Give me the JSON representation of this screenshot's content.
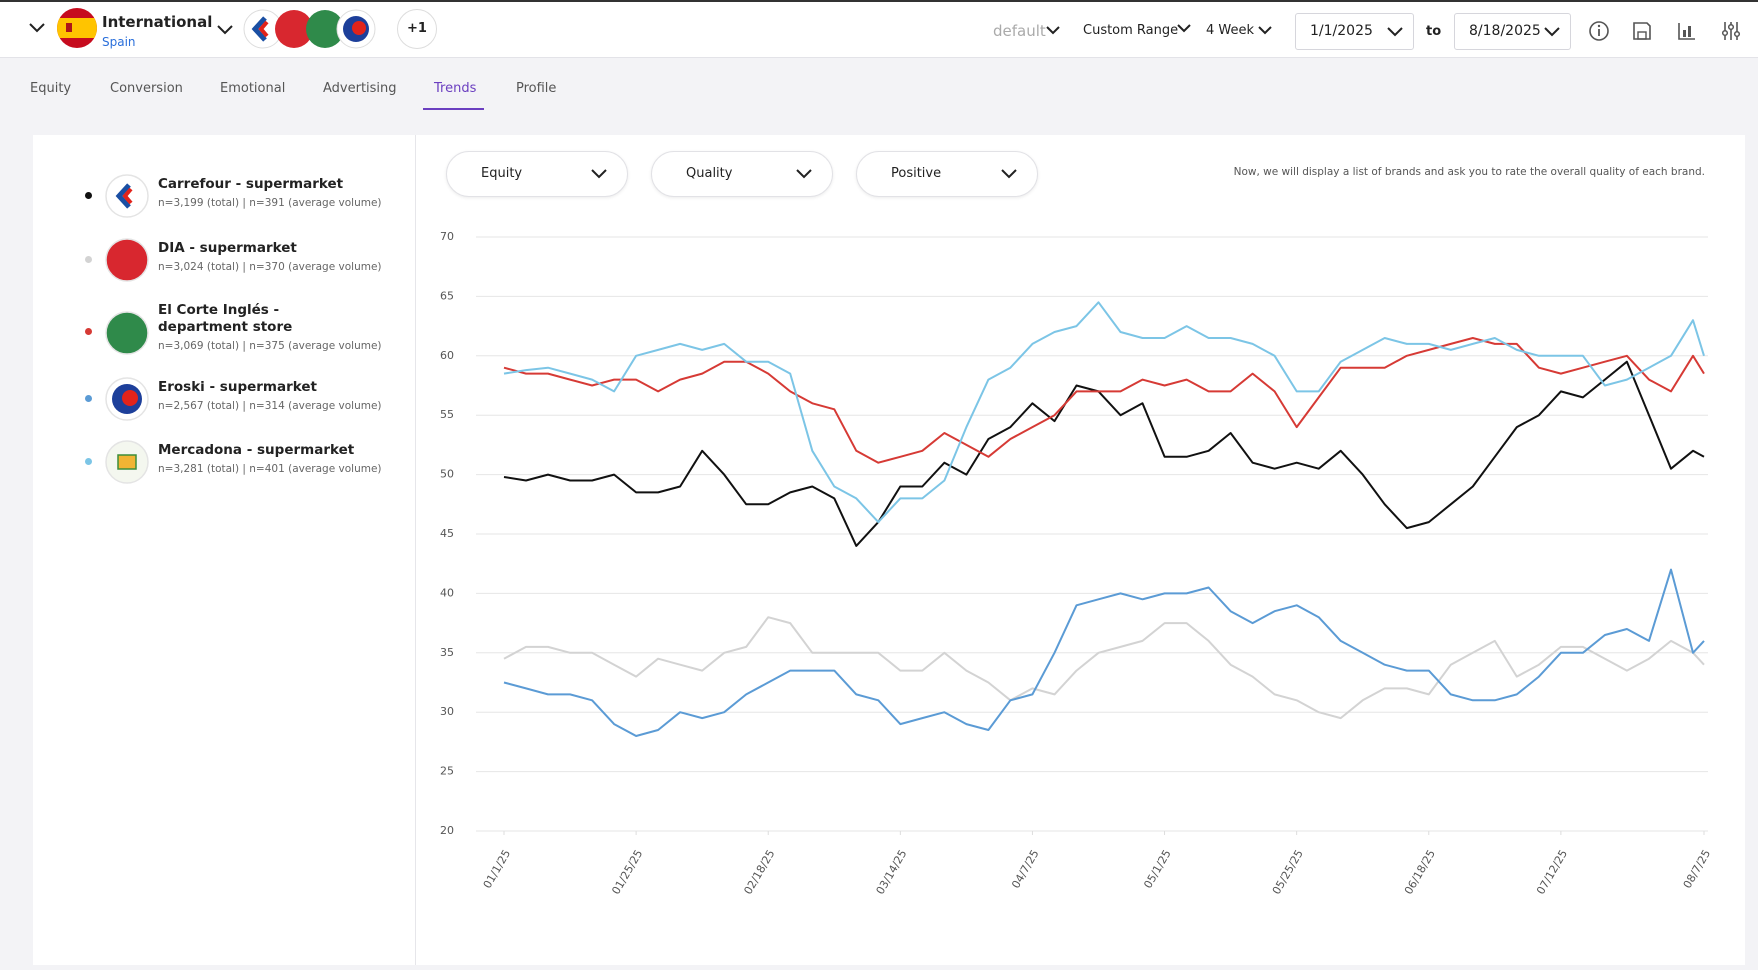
{
  "header": {
    "region": "International",
    "country": "Spain",
    "extra_count": "+1",
    "preset": "default",
    "range": "Custom Range",
    "period": "4 Week",
    "start": "1/1/2025",
    "to": "to",
    "end": "8/18/2025"
  },
  "tabs": [
    "Equity",
    "Conversion",
    "Emotional",
    "Advertising",
    "Trends",
    "Profile"
  ],
  "active_tab": 4,
  "filters": [
    "Equity",
    "Quality",
    "Positive"
  ],
  "description": "Now, we will display a list of brands and ask you to rate the overall quality of each brand.",
  "chart_data": {
    "type": "line",
    "x": [
      "01/1/25",
      "01/5/25",
      "01/9/25",
      "01/13/25",
      "01/17/25",
      "01/21/25",
      "01/25/25",
      "01/29/25",
      "02/2/25",
      "02/6/25",
      "02/10/25",
      "02/14/25",
      "02/18/25",
      "02/22/25",
      "02/26/25",
      "03/2/25",
      "03/6/25",
      "03/10/25",
      "03/14/25",
      "03/18/25",
      "03/22/25",
      "03/26/25",
      "03/30/25",
      "04/3/25",
      "04/7/25",
      "04/11/25",
      "04/15/25",
      "04/19/25",
      "04/23/25",
      "04/27/25",
      "05/1/25",
      "05/5/25",
      "05/9/25",
      "05/13/25",
      "05/17/25",
      "05/21/25",
      "05/25/25",
      "05/29/25",
      "06/2/25",
      "06/6/25",
      "06/10/25",
      "06/14/25",
      "06/18/25",
      "06/22/25",
      "06/26/25",
      "06/30/25",
      "07/4/25",
      "07/8/25",
      "07/12/25",
      "07/16/25",
      "07/20/25",
      "07/24/25",
      "07/28/25",
      "08/1/25",
      "08/5/25",
      "08/7/25"
    ],
    "xlim": [
      "01/1/25",
      "08/7/25"
    ],
    "xticks": [
      "01/1/25",
      "01/25/25",
      "02/18/25",
      "03/14/25",
      "04/7/25",
      "05/1/25",
      "05/25/25",
      "06/18/25",
      "07/12/25",
      "08/7/25"
    ],
    "ylim": [
      20,
      70
    ],
    "yticks": [
      20,
      25,
      30,
      35,
      40,
      45,
      50,
      55,
      60,
      65,
      70
    ],
    "grid": true,
    "series": [
      {
        "name": "Carrefour - supermarket",
        "sample": "n=3,199 (total) | n=391 (average volume)",
        "color": "#111111",
        "values": [
          49.8,
          49.5,
          50,
          49.5,
          49.5,
          50,
          48.5,
          48.5,
          49,
          52,
          50,
          47.5,
          47.5,
          48.5,
          49,
          48,
          44,
          46,
          49,
          49,
          51,
          50,
          53,
          54,
          56,
          54.5,
          57.5,
          57,
          55,
          56,
          51.5,
          51.5,
          52,
          53.5,
          51,
          50.5,
          51,
          50.5,
          52,
          50,
          47.5,
          45.5,
          46,
          47.5,
          49,
          51.5,
          54,
          55,
          57,
          56.5,
          58,
          59.5,
          55,
          50.5,
          52,
          51.5
        ]
      },
      {
        "name": "DIA - supermarket",
        "sample": "n=3,024 (total) | n=370 (average volume)",
        "color": "#d3d3d3",
        "values": [
          34.5,
          35.5,
          35.5,
          35,
          35,
          34,
          33,
          34.5,
          34,
          33.5,
          35,
          35.5,
          38,
          37.5,
          35,
          35,
          35,
          35,
          33.5,
          33.5,
          35,
          33.5,
          32.5,
          31,
          32,
          31.5,
          33.5,
          35,
          35.5,
          36,
          37.5,
          37.5,
          36,
          34,
          33,
          31.5,
          31,
          30,
          29.5,
          31,
          32,
          32,
          31.5,
          34,
          35,
          36,
          33,
          34,
          35.5,
          35.5,
          34.5,
          33.5,
          34.5,
          36,
          35,
          34
        ]
      },
      {
        "name": "El Corte Inglés - department store",
        "sample": "n=3,069 (total) | n=375 (average volume)",
        "color": "#d63a35",
        "values": [
          59,
          58.5,
          58.5,
          58,
          57.5,
          58,
          58,
          57,
          58,
          58.5,
          59.5,
          59.5,
          58.5,
          57,
          56,
          55.5,
          52,
          51,
          51.5,
          52,
          53.5,
          52.5,
          51.5,
          53,
          54,
          55,
          57,
          57,
          57,
          58,
          57.5,
          58,
          57,
          57,
          58.5,
          57,
          54,
          56.5,
          59,
          59,
          59,
          60,
          60.5,
          61,
          61.5,
          61,
          61,
          59,
          58.5,
          59,
          59.5,
          60,
          58,
          57,
          60,
          58.5
        ]
      },
      {
        "name": "Eroski - supermarket",
        "sample": "n=2,567 (total) | n=314 (average volume)",
        "color": "#5b9bd5",
        "values": [
          32.5,
          32,
          31.5,
          31.5,
          31,
          29,
          28,
          28.5,
          30,
          29.5,
          30,
          31.5,
          32.5,
          33.5,
          33.5,
          33.5,
          31.5,
          31,
          29,
          29.5,
          30,
          29,
          28.5,
          31,
          31.5,
          35,
          39,
          39.5,
          40,
          39.5,
          40,
          40,
          40.5,
          38.5,
          37.5,
          38.5,
          39,
          38,
          36,
          35,
          34,
          33.5,
          33.5,
          31.5,
          31,
          31,
          31.5,
          33,
          35,
          35,
          36.5,
          37,
          36,
          42,
          35,
          36
        ]
      },
      {
        "name": "Mercadona - supermarket",
        "sample": "n=3,281 (total) | n=401 (average volume)",
        "color": "#7cc5e6",
        "values": [
          58.5,
          58.8,
          59,
          58.5,
          58,
          57,
          60,
          60.5,
          61,
          60.5,
          61,
          59.5,
          59.5,
          58.5,
          52,
          49,
          48,
          46,
          48,
          48,
          49.5,
          54,
          58,
          59,
          61,
          62,
          62.5,
          64.5,
          62,
          61.5,
          61.5,
          62.5,
          61.5,
          61.5,
          61,
          60,
          57,
          57,
          59.5,
          60.5,
          61.5,
          61,
          61,
          60.5,
          61,
          61.5,
          60.5,
          60,
          60,
          60,
          57.5,
          58,
          59,
          60,
          63,
          60
        ]
      }
    ]
  }
}
